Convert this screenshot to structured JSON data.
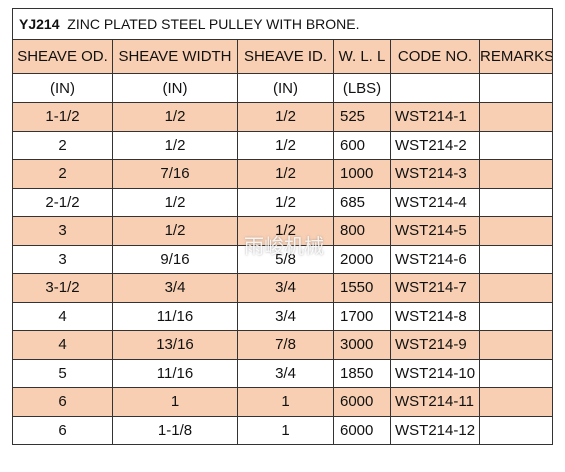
{
  "title": {
    "code": "YJ214",
    "text": "ZINC PLATED STEEL PULLEY WITH BRONE."
  },
  "table": {
    "header": [
      "SHEAVE OD.",
      "SHEAVE WIDTH",
      "SHEAVE ID.",
      "W. L. L",
      "CODE NO.",
      "REMARKS"
    ],
    "units": [
      "(IN)",
      "(IN)",
      "(IN)",
      "(LBS)"
    ],
    "rows": [
      [
        "1-1/2",
        "1/2",
        "1/2",
        "525",
        "WST214-1"
      ],
      [
        "2",
        "1/2",
        "1/2",
        "600",
        "WST214-2"
      ],
      [
        "2",
        "7/16",
        "1/2",
        "1000",
        "WST214-3"
      ],
      [
        "2-1/2",
        "1/2",
        "1/2",
        "685",
        "WST214-4"
      ],
      [
        "3",
        "1/2",
        "1/2",
        "800",
        "WST214-5"
      ],
      [
        "3",
        "9/16",
        "5/8",
        "2000",
        "WST214-6"
      ],
      [
        "3-1/2",
        "3/4",
        "3/4",
        "1550",
        "WST214-7"
      ],
      [
        "4",
        "11/16",
        "3/4",
        "1700",
        "WST214-8"
      ],
      [
        "4",
        "13/16",
        "7/8",
        "3000",
        "WST214-9"
      ],
      [
        "5",
        "11/16",
        "3/4",
        "1850",
        "WST214-10"
      ],
      [
        "6",
        "1",
        "1",
        "6000",
        "WST214-11"
      ],
      [
        "6",
        "1-1/8",
        "1",
        "6000",
        "WST214-12"
      ]
    ]
  },
  "watermark": "雨峻机械"
}
